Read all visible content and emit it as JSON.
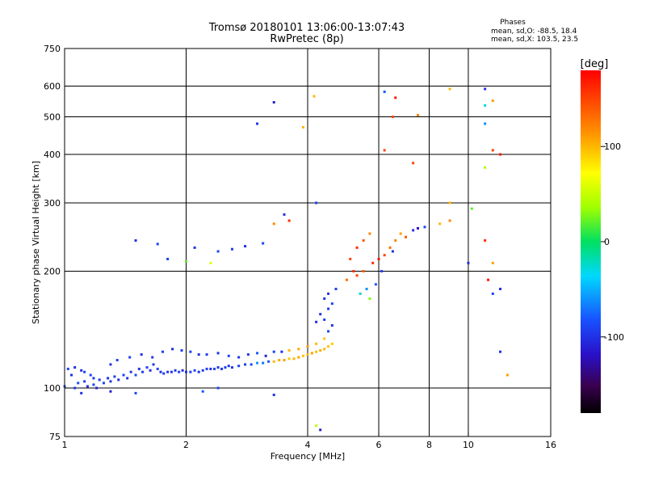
{
  "chart_data": {
    "type": "scatter",
    "title": "Tromsø 20180101 13:06:00-13:07:43",
    "subtitle": "RwPretec (8p)",
    "stats_heading": "Phases",
    "stats_o": "mean, sd,O: -88.5, 18.4",
    "stats_x": "mean, sd,X: 103.5, 23.5",
    "xlabel": "Frequency [MHz]",
    "ylabel": "Stationary phase Virtual Height [km]",
    "x_scale": "log",
    "y_scale": "log",
    "xlim": [
      1,
      16
    ],
    "ylim": [
      75,
      750
    ],
    "x_ticks": [
      1,
      2,
      4,
      6,
      8,
      10,
      16
    ],
    "x_tick_labels": [
      "1",
      "2",
      "4",
      "6",
      "8",
      "10",
      "16"
    ],
    "x_grid": [
      2,
      4,
      6,
      8,
      10
    ],
    "y_ticks": [
      75,
      100,
      200,
      300,
      400,
      500,
      600,
      750
    ],
    "y_tick_labels": [
      "75",
      "100",
      "200",
      "300",
      "400",
      "500",
      "600",
      "750"
    ],
    "y_grid": [
      100,
      200,
      300,
      400,
      500,
      600
    ],
    "grid": true,
    "colorbar": {
      "label": "[deg]",
      "range": [
        -180,
        180
      ],
      "ticks": [
        100,
        0,
        -100
      ],
      "tick_labels": [
        "100",
        "0",
        "-100"
      ]
    },
    "points": [
      [
        1.0,
        101,
        -80
      ],
      [
        1.02,
        112,
        -90
      ],
      [
        1.04,
        108,
        -100
      ],
      [
        1.06,
        100,
        -95
      ],
      [
        1.08,
        103,
        -85
      ],
      [
        1.1,
        111,
        -105
      ],
      [
        1.12,
        104,
        -90
      ],
      [
        1.14,
        101,
        -100
      ],
      [
        1.16,
        108,
        -88
      ],
      [
        1.18,
        102,
        -92
      ],
      [
        1.2,
        100,
        -110
      ],
      [
        1.22,
        105,
        -95
      ],
      [
        1.25,
        103,
        -90
      ],
      [
        1.28,
        106,
        -100
      ],
      [
        1.3,
        104,
        -98
      ],
      [
        1.33,
        107,
        -92
      ],
      [
        1.36,
        105,
        -104
      ],
      [
        1.4,
        108,
        -90
      ],
      [
        1.43,
        106,
        -100
      ],
      [
        1.46,
        110,
        -95
      ],
      [
        1.5,
        108,
        -88
      ],
      [
        1.53,
        112,
        -100
      ],
      [
        1.56,
        110,
        -94
      ],
      [
        1.6,
        113,
        -90
      ],
      [
        1.63,
        111,
        -102
      ],
      [
        1.66,
        115,
        -96
      ],
      [
        1.7,
        112,
        -90
      ],
      [
        1.73,
        110,
        -100
      ],
      [
        1.76,
        109,
        -92
      ],
      [
        1.8,
        110,
        -98
      ],
      [
        1.84,
        110,
        -100
      ],
      [
        1.88,
        111,
        -96
      ],
      [
        1.92,
        110,
        -92
      ],
      [
        1.96,
        111,
        -104
      ],
      [
        2.0,
        110,
        -100
      ],
      [
        2.05,
        110,
        -94
      ],
      [
        2.1,
        111,
        -90
      ],
      [
        2.15,
        110,
        -100
      ],
      [
        2.2,
        111,
        -96
      ],
      [
        2.25,
        112,
        -92
      ],
      [
        2.3,
        112,
        -100
      ],
      [
        2.35,
        112,
        -88
      ],
      [
        2.4,
        113,
        -95
      ],
      [
        2.45,
        112,
        -98
      ],
      [
        2.5,
        113,
        -90
      ],
      [
        2.55,
        114,
        -100
      ],
      [
        2.6,
        113,
        -94
      ],
      [
        2.7,
        114,
        -92
      ],
      [
        2.8,
        115,
        -96
      ],
      [
        2.9,
        115,
        -88
      ],
      [
        3.0,
        116,
        -60
      ],
      [
        3.1,
        116,
        -70
      ],
      [
        3.2,
        117,
        -80
      ],
      [
        3.3,
        117,
        100
      ],
      [
        3.4,
        118,
        105
      ],
      [
        3.5,
        118,
        110
      ],
      [
        3.6,
        119,
        95
      ],
      [
        3.7,
        119,
        100
      ],
      [
        3.8,
        120,
        108
      ],
      [
        3.9,
        121,
        96
      ],
      [
        4.0,
        122,
        102
      ],
      [
        4.1,
        123,
        110
      ],
      [
        4.2,
        124,
        98
      ],
      [
        4.3,
        125,
        104
      ],
      [
        4.4,
        126,
        100
      ],
      [
        4.5,
        128,
        96
      ],
      [
        4.6,
        130,
        92
      ],
      [
        1.06,
        113,
        -100
      ],
      [
        1.12,
        110,
        -90
      ],
      [
        1.18,
        106,
        -95
      ],
      [
        1.3,
        115,
        -100
      ],
      [
        1.35,
        118,
        -90
      ],
      [
        1.45,
        120,
        -92
      ],
      [
        1.55,
        122,
        -100
      ],
      [
        1.65,
        120,
        -96
      ],
      [
        1.75,
        124,
        -95
      ],
      [
        1.85,
        126,
        -100
      ],
      [
        1.95,
        125,
        -92
      ],
      [
        2.05,
        124,
        -90
      ],
      [
        2.15,
        122,
        -100
      ],
      [
        2.25,
        122,
        -95
      ],
      [
        2.4,
        123,
        -98
      ],
      [
        2.55,
        121,
        -92
      ],
      [
        2.7,
        120,
        -100
      ],
      [
        2.85,
        122,
        -96
      ],
      [
        3.0,
        123,
        -80
      ],
      [
        3.15,
        121,
        -110
      ],
      [
        3.3,
        124,
        -90
      ],
      [
        3.45,
        124,
        -100
      ],
      [
        3.6,
        125,
        100
      ],
      [
        3.8,
        126,
        105
      ],
      [
        4.0,
        128,
        110
      ],
      [
        4.2,
        130,
        100
      ],
      [
        4.4,
        134,
        95
      ],
      [
        4.5,
        140,
        -90
      ],
      [
        4.6,
        145,
        -100
      ],
      [
        4.4,
        150,
        -92
      ],
      [
        4.2,
        148,
        -100
      ],
      [
        4.5,
        160,
        -95
      ],
      [
        4.3,
        155,
        -100
      ],
      [
        4.6,
        165,
        -90
      ],
      [
        4.4,
        170,
        -98
      ],
      [
        4.5,
        175,
        -100
      ],
      [
        4.7,
        180,
        -96
      ],
      [
        5.0,
        190,
        130
      ],
      [
        5.2,
        200,
        160
      ],
      [
        5.3,
        195,
        150
      ],
      [
        5.5,
        200,
        140
      ],
      [
        5.8,
        210,
        160
      ],
      [
        6.0,
        215,
        170
      ],
      [
        6.2,
        220,
        150
      ],
      [
        6.4,
        230,
        130
      ],
      [
        6.6,
        240,
        120
      ],
      [
        6.8,
        250,
        110
      ],
      [
        7.0,
        245,
        140
      ],
      [
        5.6,
        180,
        -60
      ],
      [
        5.4,
        175,
        -20
      ],
      [
        5.7,
        170,
        30
      ],
      [
        5.9,
        185,
        -80
      ],
      [
        6.1,
        200,
        -90
      ],
      [
        6.5,
        225,
        -100
      ],
      [
        5.1,
        215,
        150
      ],
      [
        5.3,
        230,
        160
      ],
      [
        5.5,
        240,
        140
      ],
      [
        5.7,
        250,
        120
      ],
      [
        7.3,
        255,
        -100
      ],
      [
        7.5,
        258,
        -120
      ],
      [
        7.8,
        260,
        -90
      ],
      [
        8.5,
        265,
        100
      ],
      [
        9.0,
        270,
        120
      ],
      [
        1.7,
        235,
        -90
      ],
      [
        2.1,
        230,
        -100
      ],
      [
        2.4,
        225,
        -90
      ],
      [
        2.6,
        228,
        -95
      ],
      [
        2.8,
        232,
        -100
      ],
      [
        3.1,
        236,
        -90
      ],
      [
        1.5,
        240,
        -100
      ],
      [
        1.8,
        215,
        -92
      ],
      [
        2.0,
        212,
        20
      ],
      [
        2.3,
        210,
        60
      ],
      [
        3.3,
        545,
        -110
      ],
      [
        3.9,
        470,
        100
      ],
      [
        4.15,
        565,
        100
      ],
      [
        6.2,
        580,
        -80
      ],
      [
        6.6,
        560,
        170
      ],
      [
        6.5,
        500,
        150
      ],
      [
        7.5,
        505,
        120
      ],
      [
        7.3,
        380,
        150
      ],
      [
        6.2,
        410,
        150
      ],
      [
        3.0,
        480,
        -100
      ],
      [
        9.0,
        590,
        100
      ],
      [
        11.0,
        590,
        -100
      ],
      [
        11.5,
        550,
        110
      ],
      [
        11.0,
        535,
        -30
      ],
      [
        11.0,
        480,
        -60
      ],
      [
        11.0,
        370,
        40
      ],
      [
        11.5,
        410,
        150
      ],
      [
        12.0,
        400,
        170
      ],
      [
        11.0,
        240,
        160
      ],
      [
        11.5,
        210,
        110
      ],
      [
        10.0,
        210,
        -100
      ],
      [
        11.5,
        175,
        -90
      ],
      [
        12.0,
        180,
        -100
      ],
      [
        11.2,
        190,
        170
      ],
      [
        12.0,
        124,
        -100
      ],
      [
        12.5,
        108,
        110
      ],
      [
        10.2,
        290,
        20
      ],
      [
        9.0,
        300,
        100
      ],
      [
        4.2,
        300,
        -90
      ],
      [
        3.5,
        280,
        -100
      ],
      [
        3.6,
        270,
        160
      ],
      [
        3.3,
        265,
        120
      ],
      [
        4.2,
        80,
        50
      ],
      [
        4.3,
        78,
        -110
      ],
      [
        3.3,
        96,
        -100
      ],
      [
        1.5,
        97,
        -90
      ],
      [
        2.2,
        98,
        -80
      ],
      [
        2.4,
        100,
        -90
      ],
      [
        1.1,
        97,
        -100
      ],
      [
        1.3,
        98,
        -110
      ]
    ]
  }
}
